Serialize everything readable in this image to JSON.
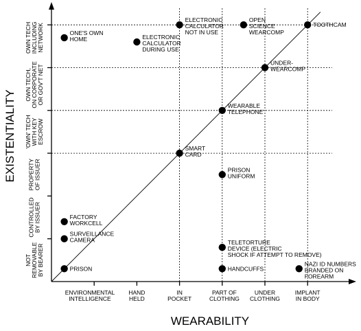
{
  "chart_data": {
    "type": "scatter",
    "xlabel": "WEARABILITY",
    "ylabel": "EXISTENTIALITY",
    "x_categories": [
      [
        "ENVIRONMENTAL",
        "INTELLIGENCE"
      ],
      [
        "HAND",
        "HELD"
      ],
      [
        "IN",
        "POCKET"
      ],
      [
        "PART OF",
        "CLOTHING"
      ],
      [
        "UNDER",
        "CLOTHING"
      ],
      [
        "IMPLANT",
        "IN BODY"
      ]
    ],
    "y_categories": [
      [
        "NOT",
        "REMOVABLE",
        "BY BEARER"
      ],
      [
        "CONTROLLED",
        "BY ISSUER"
      ],
      [
        "PROPERTY",
        "OF ISSUER"
      ],
      [
        "'OWN' TECH",
        "WITH KEY",
        "ESCROW"
      ],
      [
        "OWN TECH,",
        "ON CORPORATE",
        "OR GOV'T NET"
      ],
      [
        "OWN TECH",
        "INCLUDING",
        "NETWORK"
      ]
    ],
    "points": [
      {
        "label": [
          "ONE'S OWN",
          "HOME"
        ],
        "x": 0.3,
        "y": 5.7
      },
      {
        "label": [
          "ELECTRONIC",
          "CALCULATOR",
          "NOT IN USE"
        ],
        "x": 3.0,
        "y": 6.0
      },
      {
        "label": [
          "OPEN",
          "SCIENCE",
          "WEARCOMP"
        ],
        "x": 4.5,
        "y": 6.0
      },
      {
        "label": [
          "TOOTHCAM"
        ],
        "x": 6.0,
        "y": 6.0
      },
      {
        "label": [
          "ELECTRONIC",
          "CALCULATOR",
          "DURING USE"
        ],
        "x": 2.0,
        "y": 5.6
      },
      {
        "label": [
          "UNDER-",
          "WEARCOMP"
        ],
        "x": 5.0,
        "y": 5.0
      },
      {
        "label": [
          "WEARABLE",
          "TELEPHONE"
        ],
        "x": 4.0,
        "y": 4.0
      },
      {
        "label": [
          "SMART",
          "CARD"
        ],
        "x": 3.0,
        "y": 3.0
      },
      {
        "label": [
          "PRISON",
          "UNIFORM"
        ],
        "x": 4.0,
        "y": 2.5
      },
      {
        "label": [
          "FACTORY",
          "WORKCELL"
        ],
        "x": 0.3,
        "y": 1.4
      },
      {
        "label": [
          "SURVEILLANCE",
          "CAMERA"
        ],
        "x": 0.3,
        "y": 1.0
      },
      {
        "label": [
          "TELETORTURE",
          "DEVICE (ELECTRIC",
          "SHOCK IF ATTEMPT TO REMOVE)"
        ],
        "x": 4.0,
        "y": 0.8
      },
      {
        "label": [
          "PRISON"
        ],
        "x": 0.3,
        "y": 0.3
      },
      {
        "label": [
          "HANDCUFFS"
        ],
        "x": 4.0,
        "y": 0.3
      },
      {
        "label": [
          "NAZI ID NUMBERS",
          "BRANDED ON",
          "FOREARM"
        ],
        "x": 5.8,
        "y": 0.3
      }
    ],
    "diagonal": {
      "from": [
        0,
        0
      ],
      "to": [
        6.3,
        6.3
      ]
    },
    "x_grid_at": [
      3,
      4,
      5,
      6
    ],
    "y_grid_at": [
      3,
      4,
      5,
      6
    ],
    "xlim": [
      0,
      6.6
    ],
    "ylim": [
      0,
      6.5
    ],
    "grid": true
  }
}
